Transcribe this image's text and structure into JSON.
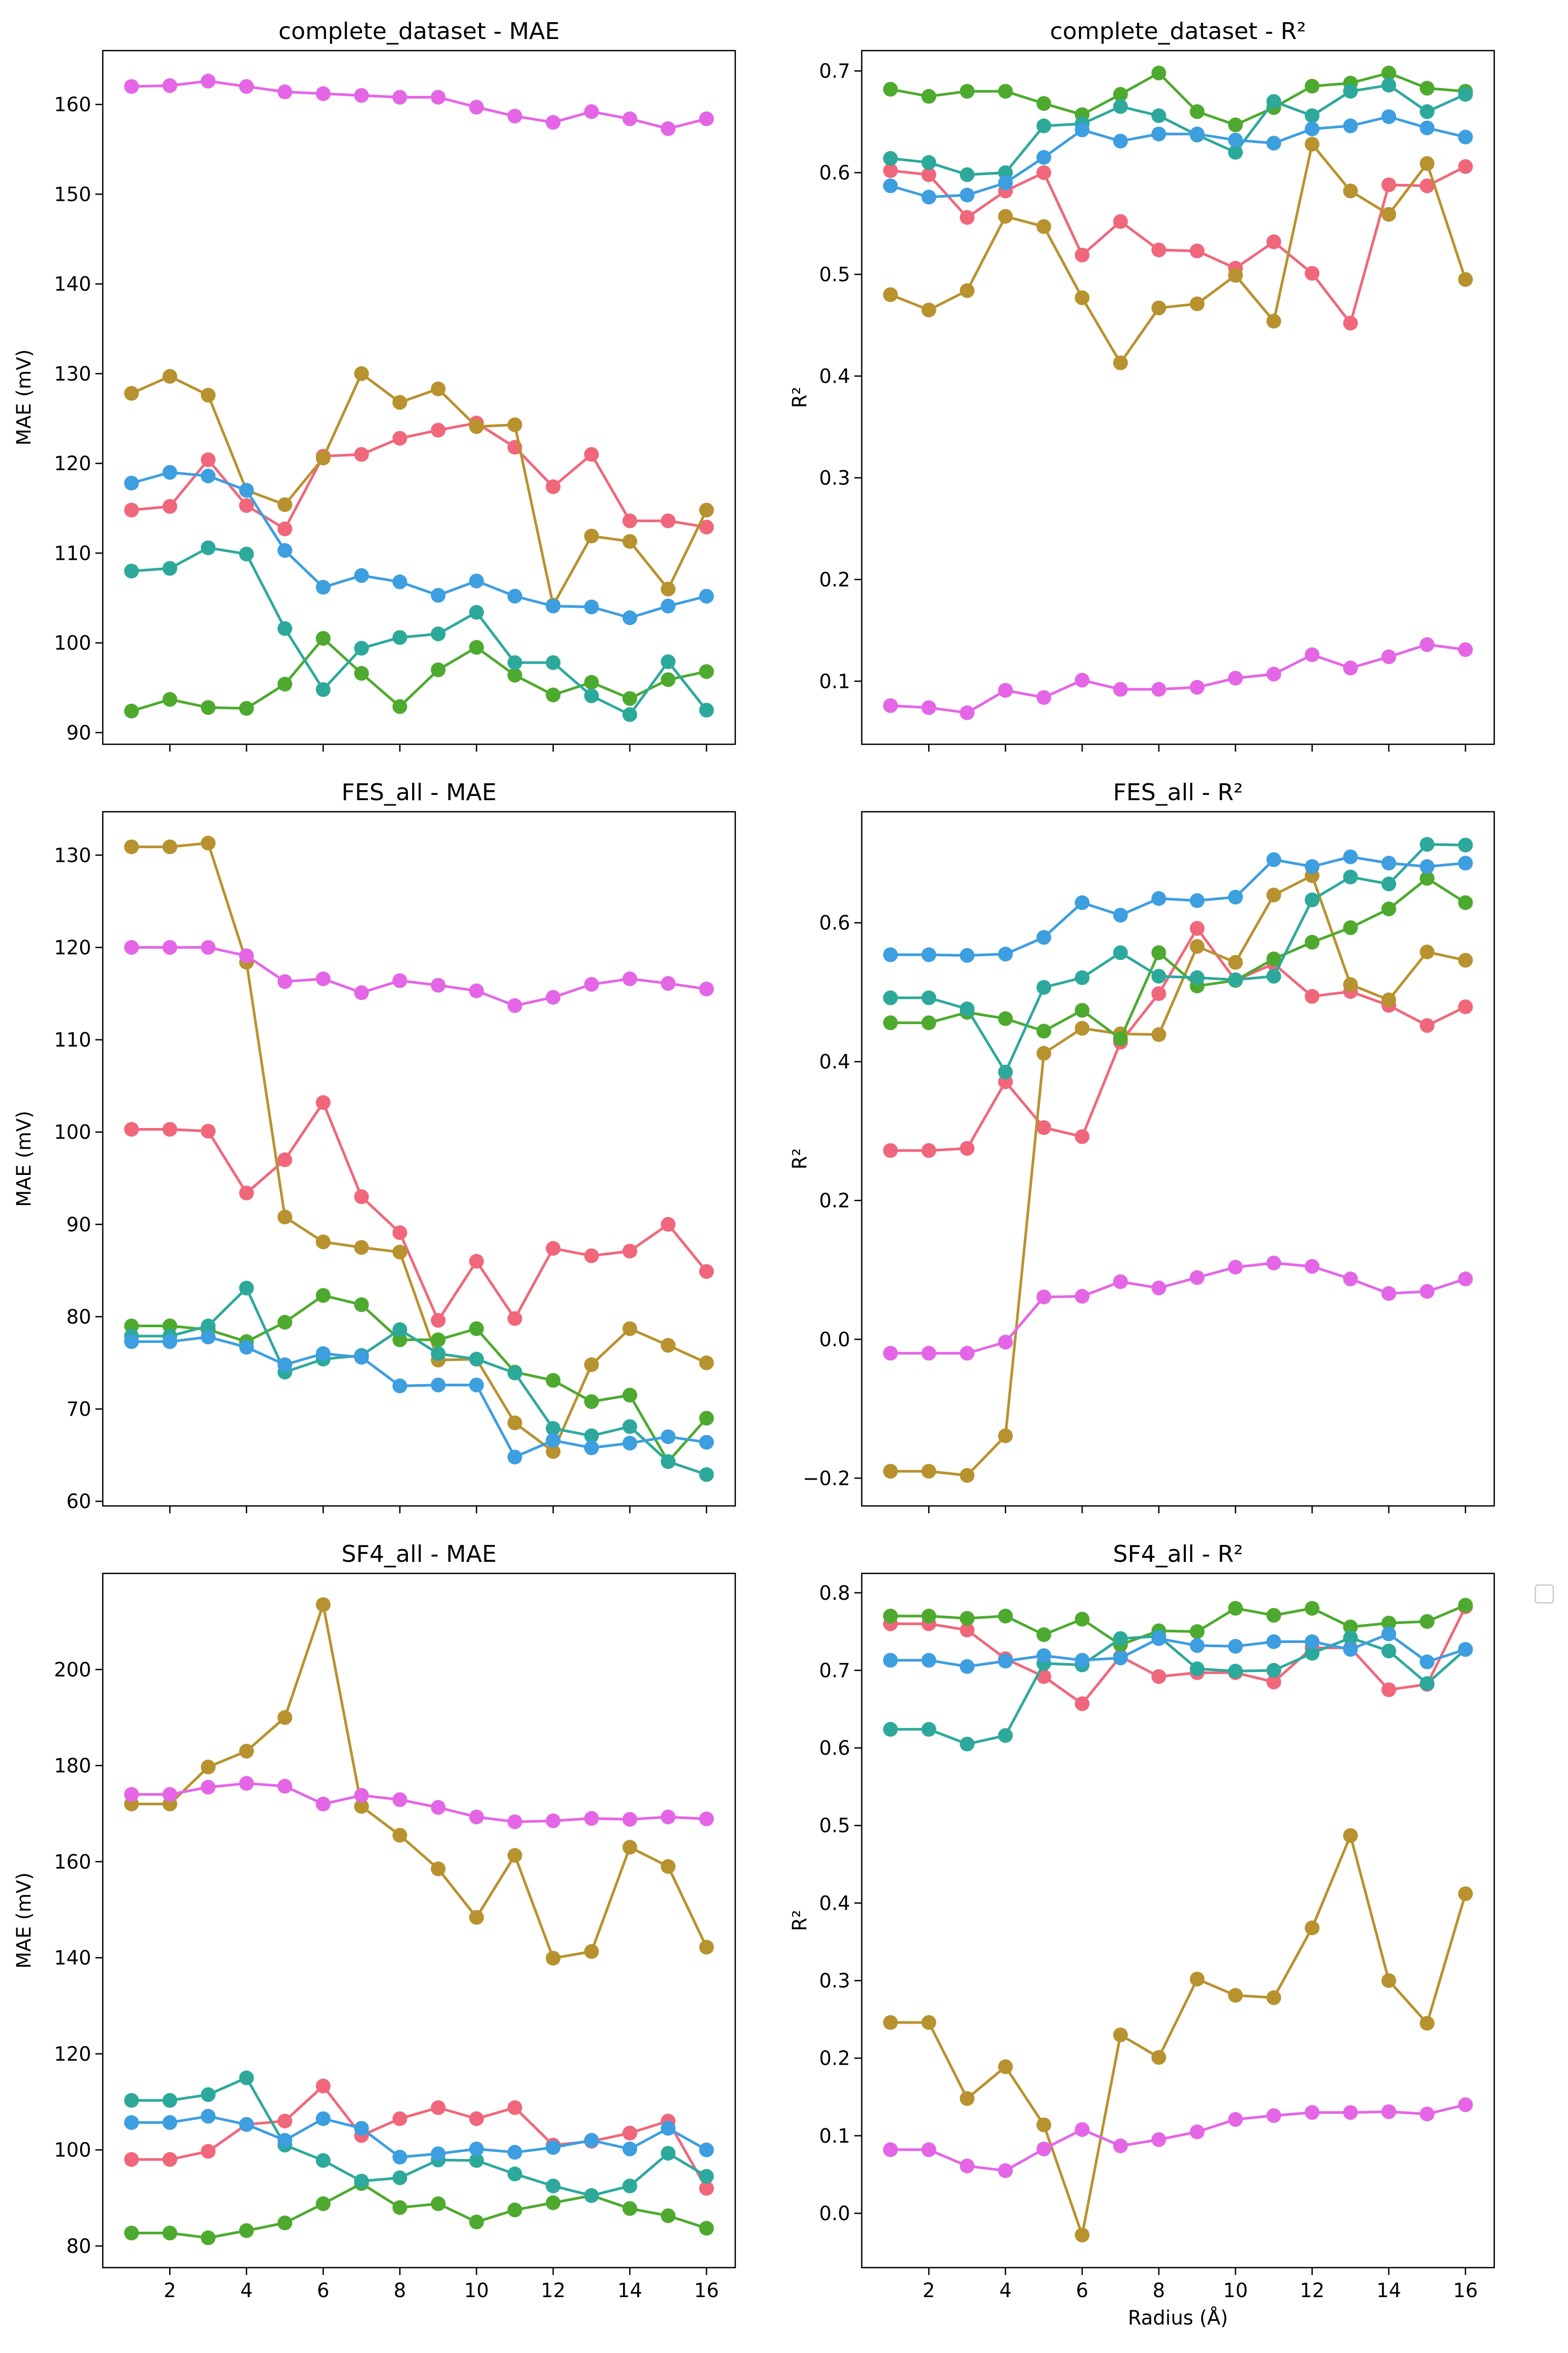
{
  "chart_data": [
    {
      "type": "line",
      "title": "complete_dataset - MAE",
      "xlabel": "",
      "ylabel": "MAE (mV)",
      "xlim": [
        0.25,
        16.75
      ],
      "ylim": [
        88.7,
        166
      ],
      "xticks": [
        2,
        4,
        6,
        8,
        10,
        12,
        14,
        16
      ],
      "yticks": [
        90,
        100,
        110,
        120,
        130,
        140,
        150,
        160
      ],
      "x": [
        1,
        2,
        3,
        4,
        5,
        6,
        7,
        8,
        9,
        10,
        11,
        12,
        13,
        14,
        15,
        16
      ],
      "series": [
        {
          "color": "#f0677b",
          "values": [
            114.8,
            115.2,
            120.4,
            115.3,
            112.7,
            120.8,
            121.0,
            122.8,
            123.7,
            124.5,
            121.8,
            117.4,
            121.0,
            113.6,
            113.6,
            112.9
          ]
        },
        {
          "color": "#b8922f",
          "values": [
            127.8,
            129.7,
            127.6,
            117.0,
            115.4,
            120.6,
            130.0,
            126.8,
            128.3,
            124.1,
            124.3,
            104.2,
            111.9,
            111.3,
            106.0,
            114.8
          ]
        },
        {
          "color": "#4daa2e",
          "values": [
            92.4,
            93.7,
            92.8,
            92.7,
            95.4,
            100.5,
            96.6,
            92.9,
            97.0,
            99.5,
            96.4,
            94.2,
            95.6,
            93.8,
            95.9,
            96.8
          ]
        },
        {
          "color": "#2da99c",
          "values": [
            108.0,
            108.3,
            110.6,
            109.9,
            101.6,
            94.8,
            99.4,
            100.6,
            101.0,
            103.4,
            97.8,
            97.8,
            94.1,
            92.0,
            97.9,
            92.5
          ]
        },
        {
          "color": "#3d9ee0",
          "values": [
            117.8,
            119.0,
            118.6,
            117.0,
            110.3,
            106.2,
            107.5,
            106.8,
            105.3,
            106.9,
            105.2,
            104.1,
            104.0,
            102.8,
            104.1,
            105.2
          ]
        },
        {
          "color": "#e466e6",
          "values": [
            162.0,
            162.1,
            162.6,
            162.0,
            161.4,
            161.2,
            161.0,
            160.8,
            160.8,
            159.7,
            158.7,
            158.0,
            159.2,
            158.4,
            157.3,
            158.4
          ]
        }
      ]
    },
    {
      "type": "line",
      "title": "complete_dataset - R²",
      "xlabel": "",
      "ylabel": "R²",
      "xlim": [
        0.25,
        16.75
      ],
      "ylim": [
        0.038,
        0.72
      ],
      "xticks": [
        2,
        4,
        6,
        8,
        10,
        12,
        14,
        16
      ],
      "yticks": [
        0.1,
        0.2,
        0.3,
        0.4,
        0.5,
        0.6,
        0.7
      ],
      "x": [
        1,
        2,
        3,
        4,
        5,
        6,
        7,
        8,
        9,
        10,
        11,
        12,
        13,
        14,
        15,
        16
      ],
      "series": [
        {
          "color": "#f0677b",
          "values": [
            0.602,
            0.598,
            0.556,
            0.582,
            0.6,
            0.519,
            0.552,
            0.524,
            0.523,
            0.506,
            0.532,
            0.501,
            0.452,
            0.588,
            0.587,
            0.606
          ]
        },
        {
          "color": "#b8922f",
          "values": [
            0.48,
            0.465,
            0.484,
            0.557,
            0.547,
            0.477,
            0.413,
            0.467,
            0.471,
            0.499,
            0.454,
            0.628,
            0.582,
            0.559,
            0.609,
            0.495
          ]
        },
        {
          "color": "#4daa2e",
          "values": [
            0.682,
            0.675,
            0.68,
            0.68,
            0.668,
            0.657,
            0.677,
            0.698,
            0.66,
            0.647,
            0.664,
            0.685,
            0.688,
            0.698,
            0.683,
            0.68
          ]
        },
        {
          "color": "#2da99c",
          "values": [
            0.614,
            0.61,
            0.598,
            0.6,
            0.646,
            0.648,
            0.665,
            0.656,
            0.637,
            0.62,
            0.67,
            0.656,
            0.68,
            0.686,
            0.66,
            0.677
          ]
        },
        {
          "color": "#3d9ee0",
          "values": [
            0.587,
            0.576,
            0.578,
            0.59,
            0.615,
            0.642,
            0.631,
            0.638,
            0.638,
            0.632,
            0.629,
            0.643,
            0.646,
            0.655,
            0.644,
            0.635
          ]
        },
        {
          "color": "#e466e6",
          "values": [
            0.076,
            0.074,
            0.069,
            0.091,
            0.084,
            0.101,
            0.092,
            0.092,
            0.094,
            0.103,
            0.107,
            0.126,
            0.113,
            0.124,
            0.136,
            0.131
          ]
        }
      ]
    },
    {
      "type": "line",
      "title": "FES_all - MAE",
      "xlabel": "",
      "ylabel": "MAE (mV)",
      "xlim": [
        0.25,
        16.75
      ],
      "ylim": [
        59.5,
        134.7
      ],
      "xticks": [
        2,
        4,
        6,
        8,
        10,
        12,
        14,
        16
      ],
      "yticks": [
        60,
        70,
        80,
        90,
        100,
        110,
        120,
        130
      ],
      "x": [
        1,
        2,
        3,
        4,
        5,
        6,
        7,
        8,
        9,
        10,
        11,
        12,
        13,
        14,
        15,
        16
      ],
      "series": [
        {
          "color": "#f0677b",
          "values": [
            100.3,
            100.3,
            100.1,
            93.4,
            97.0,
            103.2,
            93.0,
            89.1,
            79.6,
            86.0,
            79.8,
            87.4,
            86.6,
            87.1,
            90.0,
            84.9
          ]
        },
        {
          "color": "#b8922f",
          "values": [
            130.9,
            130.9,
            131.3,
            118.4,
            90.8,
            88.1,
            87.5,
            87.0,
            75.3,
            75.4,
            68.5,
            65.4,
            74.8,
            78.7,
            76.9,
            75.0
          ]
        },
        {
          "color": "#4daa2e",
          "values": [
            79.0,
            79.0,
            78.6,
            77.3,
            79.4,
            82.3,
            81.3,
            77.5,
            77.5,
            78.7,
            74.0,
            73.1,
            70.8,
            71.5,
            64.3,
            69.0
          ]
        },
        {
          "color": "#2da99c",
          "values": [
            77.9,
            77.9,
            79.0,
            83.1,
            74.0,
            75.4,
            75.8,
            78.6,
            76.0,
            75.4,
            73.9,
            67.9,
            67.1,
            68.1,
            64.3,
            62.9
          ]
        },
        {
          "color": "#3d9ee0",
          "values": [
            77.3,
            77.3,
            77.8,
            76.7,
            74.8,
            76.0,
            75.6,
            72.5,
            72.6,
            72.6,
            64.8,
            66.6,
            65.8,
            66.3,
            67.0,
            66.4
          ]
        },
        {
          "color": "#e466e6",
          "values": [
            120.0,
            120.0,
            120.0,
            119.1,
            116.3,
            116.6,
            115.1,
            116.4,
            115.9,
            115.3,
            113.7,
            114.6,
            116.0,
            116.6,
            116.1,
            115.5
          ]
        }
      ]
    },
    {
      "type": "line",
      "title": "FES_all - R²",
      "xlabel": "",
      "ylabel": "R²",
      "xlim": [
        0.25,
        16.75
      ],
      "ylim": [
        -0.24,
        0.76
      ],
      "xticks": [
        2,
        4,
        6,
        8,
        10,
        12,
        14,
        16
      ],
      "yticks": [
        -0.2,
        0.0,
        0.2,
        0.4,
        0.6
      ],
      "ytick_labels": [
        "−0.2",
        "0.0",
        "0.2",
        "0.4",
        "0.6"
      ],
      "x": [
        1,
        2,
        3,
        4,
        5,
        6,
        7,
        8,
        9,
        10,
        11,
        12,
        13,
        14,
        15,
        16
      ],
      "series": [
        {
          "color": "#f0677b",
          "values": [
            0.272,
            0.272,
            0.275,
            0.371,
            0.305,
            0.292,
            0.428,
            0.498,
            0.592,
            0.517,
            0.541,
            0.494,
            0.501,
            0.481,
            0.452,
            0.479
          ]
        },
        {
          "color": "#b8922f",
          "values": [
            -0.19,
            -0.19,
            -0.196,
            -0.139,
            0.412,
            0.448,
            0.44,
            0.439,
            0.566,
            0.543,
            0.64,
            0.668,
            0.511,
            0.489,
            0.558,
            0.546
          ]
        },
        {
          "color": "#4daa2e",
          "values": [
            0.456,
            0.456,
            0.471,
            0.462,
            0.444,
            0.474,
            0.433,
            0.557,
            0.509,
            0.517,
            0.548,
            0.572,
            0.593,
            0.62,
            0.664,
            0.629
          ]
        },
        {
          "color": "#2da99c",
          "values": [
            0.492,
            0.492,
            0.476,
            0.385,
            0.507,
            0.521,
            0.557,
            0.523,
            0.521,
            0.518,
            0.523,
            0.633,
            0.666,
            0.656,
            0.713,
            0.712
          ]
        },
        {
          "color": "#3d9ee0",
          "values": [
            0.554,
            0.554,
            0.553,
            0.555,
            0.579,
            0.629,
            0.611,
            0.635,
            0.632,
            0.637,
            0.691,
            0.681,
            0.695,
            0.686,
            0.681,
            0.686
          ]
        },
        {
          "color": "#e466e6",
          "values": [
            -0.02,
            -0.02,
            -0.02,
            -0.004,
            0.061,
            0.062,
            0.083,
            0.074,
            0.089,
            0.104,
            0.11,
            0.105,
            0.087,
            0.066,
            0.069,
            0.087
          ]
        }
      ]
    },
    {
      "type": "line",
      "title": "SF4_all - MAE",
      "xlabel": "",
      "ylabel": "MAE (mV)",
      "xlim": [
        0.25,
        16.75
      ],
      "ylim": [
        75.5,
        220
      ],
      "xticks": [
        2,
        4,
        6,
        8,
        10,
        12,
        14,
        16
      ],
      "yticks": [
        80,
        100,
        120,
        140,
        160,
        180,
        200
      ],
      "x": [
        1,
        2,
        3,
        4,
        5,
        6,
        7,
        8,
        9,
        10,
        11,
        12,
        13,
        14,
        15,
        16
      ],
      "series": [
        {
          "color": "#f0677b",
          "values": [
            98.0,
            98.0,
            99.7,
            105.3,
            106.0,
            113.3,
            103.0,
            106.5,
            108.8,
            106.5,
            108.8,
            101.0,
            101.8,
            103.5,
            106.0,
            92.0
          ]
        },
        {
          "color": "#b8922f",
          "values": [
            172.0,
            172.0,
            179.7,
            183.0,
            190.0,
            213.5,
            171.5,
            165.5,
            158.5,
            148.4,
            161.3,
            139.9,
            141.3,
            163.0,
            159.0,
            142.2
          ]
        },
        {
          "color": "#4daa2e",
          "values": [
            82.7,
            82.7,
            81.7,
            83.2,
            84.8,
            88.8,
            93.0,
            88.0,
            88.8,
            85.0,
            87.5,
            89.0,
            90.5,
            87.8,
            86.3,
            83.7
          ]
        },
        {
          "color": "#2da99c",
          "values": [
            110.3,
            110.3,
            111.5,
            115.0,
            101.0,
            97.8,
            93.5,
            94.2,
            97.9,
            97.8,
            95.0,
            92.5,
            90.5,
            92.5,
            99.3,
            94.5
          ]
        },
        {
          "color": "#3d9ee0",
          "values": [
            105.7,
            105.7,
            107.0,
            105.3,
            102.0,
            106.5,
            104.5,
            98.5,
            99.2,
            100.2,
            99.5,
            100.5,
            102.0,
            100.2,
            104.5,
            100.0
          ]
        },
        {
          "color": "#e466e6",
          "values": [
            174.0,
            174.0,
            175.5,
            176.3,
            175.7,
            172.0,
            173.8,
            172.9,
            171.3,
            169.3,
            168.3,
            168.5,
            169.0,
            168.8,
            169.3,
            168.9
          ]
        }
      ]
    },
    {
      "type": "line",
      "title": "SF4_all - R²",
      "xlabel": "Radius (Å)",
      "ylabel": "R²",
      "xlim": [
        0.25,
        16.75
      ],
      "ylim": [
        -0.07,
        0.825
      ],
      "xticks": [
        2,
        4,
        6,
        8,
        10,
        12,
        14,
        16
      ],
      "yticks": [
        0.0,
        0.1,
        0.2,
        0.3,
        0.4,
        0.5,
        0.6,
        0.7,
        0.8
      ],
      "x": [
        1,
        2,
        3,
        4,
        5,
        6,
        7,
        8,
        9,
        10,
        11,
        12,
        13,
        14,
        15,
        16
      ],
      "series": [
        {
          "color": "#f0677b",
          "values": [
            0.76,
            0.76,
            0.752,
            0.715,
            0.692,
            0.657,
            0.718,
            0.692,
            0.697,
            0.697,
            0.685,
            0.729,
            0.729,
            0.675,
            0.682,
            0.782
          ]
        },
        {
          "color": "#b8922f",
          "values": [
            0.246,
            0.246,
            0.148,
            0.189,
            0.114,
            -0.028,
            0.23,
            0.201,
            0.302,
            0.281,
            0.278,
            0.368,
            0.487,
            0.3,
            0.245,
            0.412
          ]
        },
        {
          "color": "#4daa2e",
          "values": [
            0.77,
            0.77,
            0.767,
            0.77,
            0.746,
            0.766,
            0.733,
            0.751,
            0.75,
            0.78,
            0.771,
            0.78,
            0.756,
            0.761,
            0.763,
            0.784
          ]
        },
        {
          "color": "#2da99c",
          "values": [
            0.624,
            0.624,
            0.605,
            0.616,
            0.709,
            0.707,
            0.741,
            0.744,
            0.702,
            0.699,
            0.7,
            0.722,
            0.742,
            0.725,
            0.683,
            0.727
          ]
        },
        {
          "color": "#3d9ee0",
          "values": [
            0.713,
            0.713,
            0.705,
            0.712,
            0.719,
            0.713,
            0.716,
            0.741,
            0.732,
            0.731,
            0.737,
            0.737,
            0.727,
            0.747,
            0.711,
            0.727
          ]
        },
        {
          "color": "#e466e6",
          "values": [
            0.082,
            0.082,
            0.061,
            0.055,
            0.083,
            0.108,
            0.087,
            0.095,
            0.105,
            0.121,
            0.126,
            0.13,
            0.13,
            0.131,
            0.128,
            0.14
          ]
        }
      ]
    }
  ],
  "legend": {
    "placement": "right",
    "entries": []
  }
}
